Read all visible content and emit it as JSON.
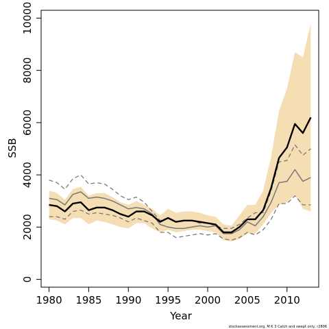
{
  "chart_data": {
    "type": "line",
    "xlabel": "Year",
    "ylabel": "SSB",
    "xlim": [
      1979,
      2014
    ],
    "ylim": [
      -300,
      10300
    ],
    "x_ticks": [
      1980,
      1985,
      1990,
      1995,
      2000,
      2005,
      2010
    ],
    "y_ticks": [
      0,
      2000,
      4000,
      6000,
      8000,
      10000
    ],
    "grid": false,
    "legend": "none",
    "footnote": "stockassessment.org, M K 3 Catch and swept only, r2806",
    "colors": {
      "band": "#f5deb3",
      "estimate": "#000000",
      "secondary": "#777777"
    },
    "x": [
      1980,
      1981,
      1982,
      1983,
      1984,
      1985,
      1986,
      1987,
      1988,
      1989,
      1990,
      1991,
      1992,
      1993,
      1994,
      1995,
      1996,
      1997,
      1998,
      1999,
      2000,
      2001,
      2002,
      2003,
      2004,
      2005,
      2006,
      2007,
      2008,
      2009,
      2010,
      2011,
      2012,
      2013
    ],
    "band": {
      "upper": [
        3400,
        3300,
        3050,
        3450,
        3550,
        3200,
        3300,
        3300,
        3150,
        2950,
        2850,
        3000,
        2850,
        2700,
        2450,
        2700,
        2550,
        2600,
        2600,
        2550,
        2450,
        2400,
        2100,
        2050,
        2450,
        2850,
        2850,
        3400,
        4700,
        6450,
        7300,
        8700,
        8500,
        9800
      ],
      "lower": [
        2300,
        2250,
        2100,
        2350,
        2350,
        2100,
        2250,
        2200,
        2100,
        2000,
        1950,
        2150,
        2150,
        1950,
        1800,
        1900,
        1800,
        1850,
        1900,
        1900,
        1850,
        1800,
        1500,
        1450,
        1550,
        1750,
        1750,
        2100,
        2550,
        2850,
        2950,
        3250,
        2700,
        2600
      ]
    },
    "series": [
      {
        "style": "solid-bold",
        "values": [
          2850,
          2800,
          2600,
          2900,
          2950,
          2650,
          2750,
          2750,
          2650,
          2500,
          2400,
          2600,
          2600,
          2450,
          2200,
          2350,
          2200,
          2250,
          2250,
          2200,
          2150,
          2100,
          1800,
          1800,
          2000,
          2300,
          2300,
          2650,
          3500,
          4650,
          5050,
          5950,
          5600,
          6200
        ]
      },
      {
        "style": "solid-grey",
        "values": [
          3100,
          3050,
          2850,
          3250,
          3350,
          3100,
          3150,
          3100,
          3000,
          2850,
          2700,
          2750,
          2700,
          2500,
          2100,
          2000,
          1950,
          1950,
          2000,
          2050,
          2000,
          2050,
          1750,
          1750,
          1900,
          2200,
          2050,
          2400,
          2950,
          3700,
          3750,
          4200,
          3750,
          3900
        ]
      },
      {
        "style": "dashed-grey",
        "values": [
          3800,
          3700,
          3450,
          3850,
          4000,
          3650,
          3700,
          3650,
          3450,
          3200,
          3050,
          3150,
          2950,
          2600,
          2250,
          2350,
          2200,
          2250,
          2250,
          2150,
          2150,
          2050,
          1950,
          1950,
          2100,
          2350,
          2550,
          2550,
          3400,
          4500,
          4550,
          5150,
          4750,
          5000
        ]
      },
      {
        "style": "dashed-grey",
        "values": [
          2400,
          2400,
          2300,
          2600,
          2650,
          2500,
          2550,
          2500,
          2450,
          2350,
          2200,
          2350,
          2250,
          2150,
          1800,
          1800,
          1600,
          1650,
          1700,
          1750,
          1700,
          1750,
          1550,
          1500,
          1600,
          1800,
          1700,
          1900,
          2300,
          2900,
          2900,
          3200,
          2850,
          2850
        ]
      }
    ]
  }
}
